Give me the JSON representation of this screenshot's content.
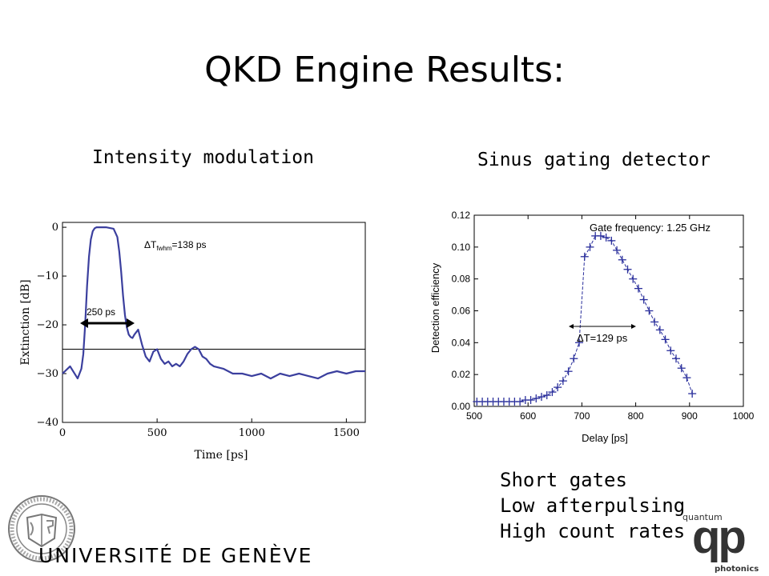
{
  "title": "QKD Engine Results:",
  "left_panel": {
    "subtitle": "Intensity modulation",
    "annotation_pulse_width": "250 ps",
    "annotation_fwhm_prefix": "ΔT",
    "annotation_fwhm_sub": "fwhm",
    "annotation_fwhm_value": "=138 ps"
  },
  "right_panel": {
    "subtitle": "Sinus gating detector",
    "annotation_gate": "Gate frequency: 1.25 GHz",
    "annotation_dt": "ΔT=129 ps"
  },
  "bullets": [
    "Short gates",
    "Low afterpulsing",
    "High count rates"
  ],
  "logos": {
    "university": "UNIVERSITÉ DE GENÈVE",
    "qp_top": "quantum",
    "qp_mark": "qp",
    "qp_bottom": "photonics"
  },
  "chart_data": [
    {
      "type": "line",
      "title": "",
      "xlabel": "Time [ps]",
      "ylabel": "Extinction [dB]",
      "xlim": [
        0,
        1600
      ],
      "ylim": [
        -40,
        1
      ],
      "xticks": [
        0,
        500,
        1000,
        1500
      ],
      "yticks": [
        0,
        -10,
        -20,
        -30,
        -40
      ],
      "xticklabels": [
        "0",
        "500",
        "1000",
        "1500"
      ],
      "yticklabels": [
        "0",
        "−10",
        "−20",
        "−30",
        "−40"
      ],
      "color": "#3b3f9e",
      "reference_line_y": -25,
      "x": [
        0,
        40,
        80,
        100,
        110,
        120,
        130,
        140,
        150,
        160,
        170,
        180,
        200,
        230,
        270,
        290,
        300,
        310,
        320,
        330,
        340,
        350,
        360,
        370,
        380,
        400,
        420,
        440,
        460,
        480,
        500,
        520,
        540,
        560,
        580,
        600,
        620,
        640,
        660,
        680,
        700,
        720,
        740,
        760,
        780,
        800,
        850,
        900,
        950,
        1000,
        1050,
        1100,
        1150,
        1200,
        1250,
        1300,
        1350,
        1400,
        1450,
        1500,
        1550,
        1600
      ],
      "y": [
        -30,
        -28.5,
        -31,
        -29,
        -26,
        -20,
        -12,
        -6,
        -2.5,
        -0.8,
        -0.2,
        0,
        0,
        0,
        -0.3,
        -2,
        -5,
        -9,
        -14,
        -18,
        -20.5,
        -22,
        -22.5,
        -22.7,
        -22,
        -21,
        -24,
        -26.5,
        -27.5,
        -25.5,
        -25,
        -27,
        -28,
        -27.5,
        -28.5,
        -28,
        -28.5,
        -27.5,
        -26,
        -25,
        -24.5,
        -25,
        -26.5,
        -27,
        -28,
        -28.5,
        -29,
        -30,
        -30,
        -30.5,
        -30,
        -31,
        -30,
        -30.5,
        -30,
        -30.5,
        -31,
        -30,
        -29.5,
        -30,
        -29.5,
        -29.5
      ]
    },
    {
      "type": "scatter",
      "title": "",
      "xlabel": "Delay [ps]",
      "ylabel": "Detection efficiency",
      "xlim": [
        500,
        1000
      ],
      "ylim": [
        0,
        0.12
      ],
      "xticks": [
        500,
        600,
        700,
        800,
        900,
        1000
      ],
      "yticks": [
        0,
        0.02,
        0.04,
        0.06,
        0.08,
        0.1,
        0.12
      ],
      "xticklabels": [
        "500",
        "600",
        "700",
        "800",
        "900",
        "1000"
      ],
      "yticklabels": [
        "0.00",
        "0.02",
        "0.04",
        "0.06",
        "0.08",
        "0.10",
        "0.12"
      ],
      "marker": "+",
      "color": "#2a2f9c",
      "x": [
        505,
        515,
        525,
        535,
        545,
        555,
        565,
        575,
        585,
        595,
        605,
        615,
        625,
        635,
        645,
        655,
        665,
        675,
        685,
        695,
        705,
        715,
        725,
        735,
        745,
        755,
        765,
        775,
        785,
        795,
        805,
        815,
        825,
        835,
        845,
        855,
        865,
        875,
        885,
        895,
        905
      ],
      "y": [
        0.003,
        0.003,
        0.003,
        0.003,
        0.003,
        0.003,
        0.003,
        0.003,
        0.003,
        0.004,
        0.004,
        0.005,
        0.006,
        0.007,
        0.009,
        0.012,
        0.016,
        0.022,
        0.03,
        0.04,
        0.094,
        0.1,
        0.107,
        0.107,
        0.106,
        0.104,
        0.098,
        0.092,
        0.086,
        0.08,
        0.074,
        0.067,
        0.06,
        0.053,
        0.048,
        0.042,
        0.035,
        0.03,
        0.024,
        0.018,
        0.008
      ]
    }
  ]
}
